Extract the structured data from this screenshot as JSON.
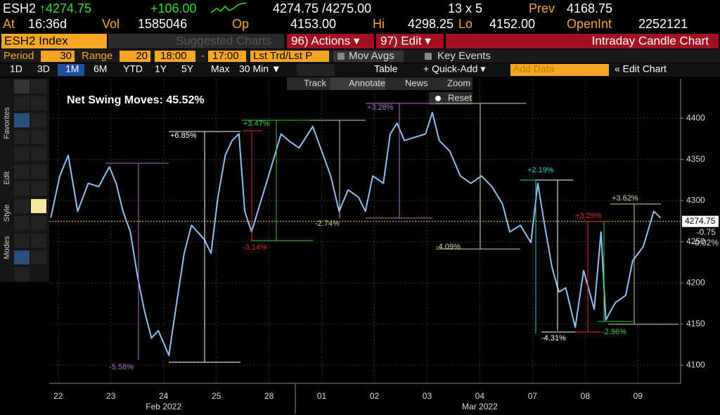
{
  "header": {
    "ticker": "ESH2",
    "last": "↑4274.75",
    "change": "+106.00",
    "bid_ask": "4274.75 /4275.00",
    "size": "13 x 5",
    "prev_label": "Prev",
    "prev": "4168.75",
    "at_label": "At",
    "time": "16:36d",
    "vol_label": "Vol",
    "vol": "1585046",
    "op_label": "Op",
    "op": "4153.00",
    "hi_label": "Hi",
    "hi": "4298.25",
    "lo_label": "Lo",
    "lo": "4152.00",
    "oi_label": "OpenInt",
    "oi": "2252121"
  },
  "toolbar": {
    "security": "ESH2 Index",
    "suggested": "Suggested Charts",
    "actions": "96) Actions ▾",
    "edit": "97) Edit ▾",
    "chart_name": "Intraday Candle Chart",
    "period_label": "Period",
    "period": "30",
    "range_label": "Range",
    "range": "20",
    "start": "18:00",
    "range_sep": "-",
    "end": "17:00",
    "price_type": "Lst Trd/Lst P",
    "mov_avgs": "Mov Avgs",
    "key_events": "Key Events",
    "ranges": [
      "1D",
      "3D",
      "1M",
      "6M",
      "YTD",
      "1Y",
      "5Y",
      "Max"
    ],
    "interval": "30 Min ▼",
    "table": "Table",
    "quick_add": "+ Quick-Add ▾",
    "add_data": "Add Data",
    "edit_chart": "« Edit Chart"
  },
  "chart_tools": {
    "track": "Track",
    "annotate": "Annotate",
    "news": "News",
    "zoom": "Zoom",
    "reset": "Reset"
  },
  "side_tabs": [
    "Favorites",
    "Edit",
    "Style",
    "Modes"
  ],
  "chart_data": {
    "type": "line",
    "title": "Net Swing Moves: 45.52%",
    "color": "#8ec0f0",
    "x": [
      0.36,
      0.53,
      0.69,
      0.87,
      1.07,
      1.27,
      1.47,
      1.6,
      1.73,
      1.87,
      2,
      2.13,
      2.27,
      2.4,
      2.6,
      2.73,
      2.89,
      3.03,
      3.27,
      3.4,
      3.53,
      3.67,
      3.8,
      3.93,
      4.04,
      4.17,
      4.33,
      4.53,
      4.73,
      4.87,
      5.07,
      5.33,
      5.53,
      5.67,
      5.83,
      6,
      6.2,
      6.33,
      6.47,
      6.67,
      6.8,
      6.93,
      7.07,
      7.27,
      7.47,
      7.6,
      7.73,
      7.93,
      8.13,
      8.33,
      8.53,
      8.73,
      8.93,
      9.07,
      9.27,
      9.47,
      9.6,
      9.73,
      9.87,
      10,
      10.13,
      10.31,
      10.47,
      10.67,
      10.8,
      10.89,
      11.07,
      11.27,
      11.4,
      11.6,
      11.8,
      11.93
    ],
    "values": [
      4279,
      4330,
      4355,
      4287,
      4321,
      4317,
      4341,
      4321,
      4287,
      4262,
      4210,
      4168,
      4133,
      4142,
      4112,
      4168,
      4236,
      4270,
      4253,
      4236,
      4304,
      4355,
      4373,
      4381,
      4287,
      4262,
      4296,
      4338,
      4381,
      4373,
      4364,
      4390,
      4355,
      4330,
      4287,
      4313,
      4304,
      4287,
      4330,
      4321,
      4381,
      4394,
      4373,
      4377,
      4381,
      4407,
      4373,
      4360,
      4330,
      4321,
      4330,
      4317,
      4296,
      4262,
      4270,
      4249,
      4321,
      4270,
      4219,
      4189,
      4194,
      4146,
      4215,
      4168,
      4262,
      4155,
      4176,
      4185,
      4227,
      4244,
      4287,
      4279
    ],
    "xlim": [
      0.33,
      12.31
    ],
    "ylim": [
      4078,
      4448
    ],
    "yticks": [
      4100,
      4150,
      4200,
      4250,
      4300,
      4350,
      4400
    ],
    "grid": true,
    "xticks": [
      {
        "value": 0.5,
        "label": "22"
      },
      {
        "value": 1.5,
        "label": "23"
      },
      {
        "value": 2.5,
        "label": "24"
      },
      {
        "value": 3.5,
        "label": "25"
      },
      {
        "value": 4.5,
        "label": "28"
      },
      {
        "value": 5.5,
        "label": "01"
      },
      {
        "value": 6.5,
        "label": "02"
      },
      {
        "value": 7.5,
        "label": "03"
      },
      {
        "value": 8.5,
        "label": "04"
      },
      {
        "value": 9.5,
        "label": "07"
      },
      {
        "value": 10.5,
        "label": "08"
      },
      {
        "value": 11.5,
        "label": "09"
      }
    ],
    "month_labels": [
      {
        "value": 2.5,
        "label": "Feb 2022"
      },
      {
        "value": 8.5,
        "label": "Mar 2022"
      }
    ],
    "month_breaks": [
      5
    ],
    "last_price": 4274.75,
    "last_change": "-0.75",
    "last_change_pct": "-0.02%",
    "swings": [
      {
        "label": "+6.85%",
        "color": "#ffffff"
      },
      {
        "label": "-5.58%",
        "color": "#b070c8"
      },
      {
        "label": "+3.47%",
        "color": "#30d030"
      },
      {
        "label": "-3.14%",
        "color": "#e02828"
      },
      {
        "label": "-2.74%",
        "color": "#d8d4a0"
      },
      {
        "label": "+3.28%",
        "color": "#b070c8"
      },
      {
        "label": "-4.09%",
        "color": "#d8d4a0"
      },
      {
        "label": "+2.19%",
        "color": "#30d0d0"
      },
      {
        "label": "-4.31%",
        "color": "#ffffff"
      },
      {
        "label": "+3.29%",
        "color": "#e02828"
      },
      {
        "label": "-2.96%",
        "color": "#30d030"
      },
      {
        "label": "+3.62%",
        "color": "#d8d4a0"
      }
    ]
  }
}
